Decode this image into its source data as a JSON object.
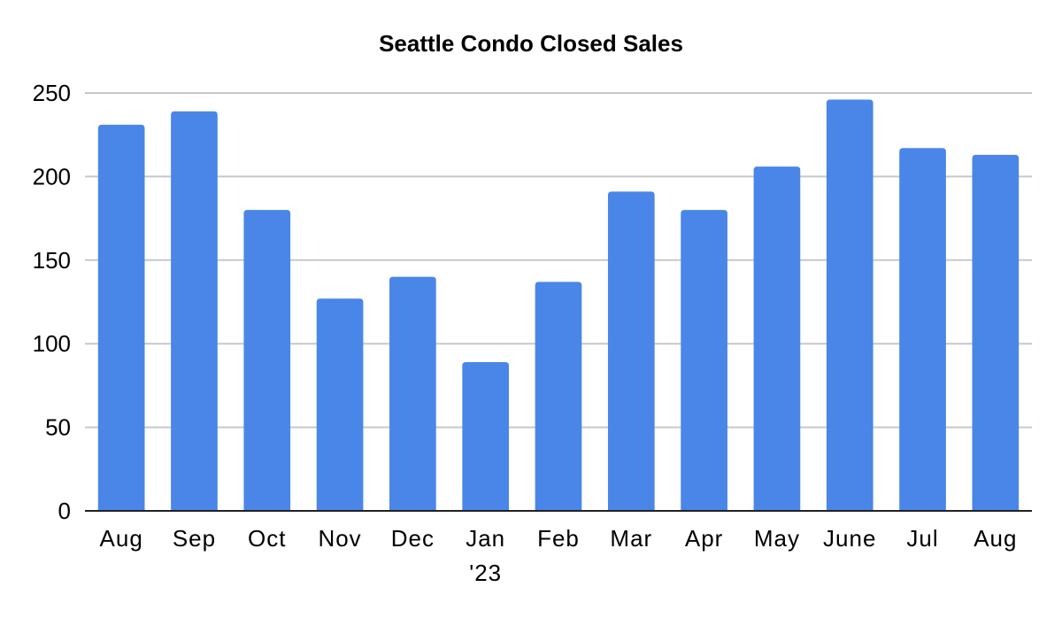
{
  "chart_data": {
    "type": "bar",
    "title": "Seattle Condo Closed Sales",
    "categories": [
      "Aug",
      "Sep",
      "Oct",
      "Nov",
      "Dec",
      "Jan",
      "Feb",
      "Mar",
      "Apr",
      "May",
      "June",
      "Jul",
      "Aug"
    ],
    "category_sublabels": [
      "",
      "",
      "",
      "",
      "",
      "'23",
      "",
      "",
      "",
      "",
      "",
      "",
      ""
    ],
    "values": [
      231,
      239,
      180,
      127,
      140,
      89,
      137,
      191,
      180,
      206,
      246,
      217,
      213
    ],
    "ylim": [
      0,
      250
    ],
    "yticks": [
      "0",
      "50",
      "100",
      "150",
      "200",
      "250"
    ],
    "bar_color": "#4a86e8",
    "grid": true,
    "legend": "none"
  }
}
